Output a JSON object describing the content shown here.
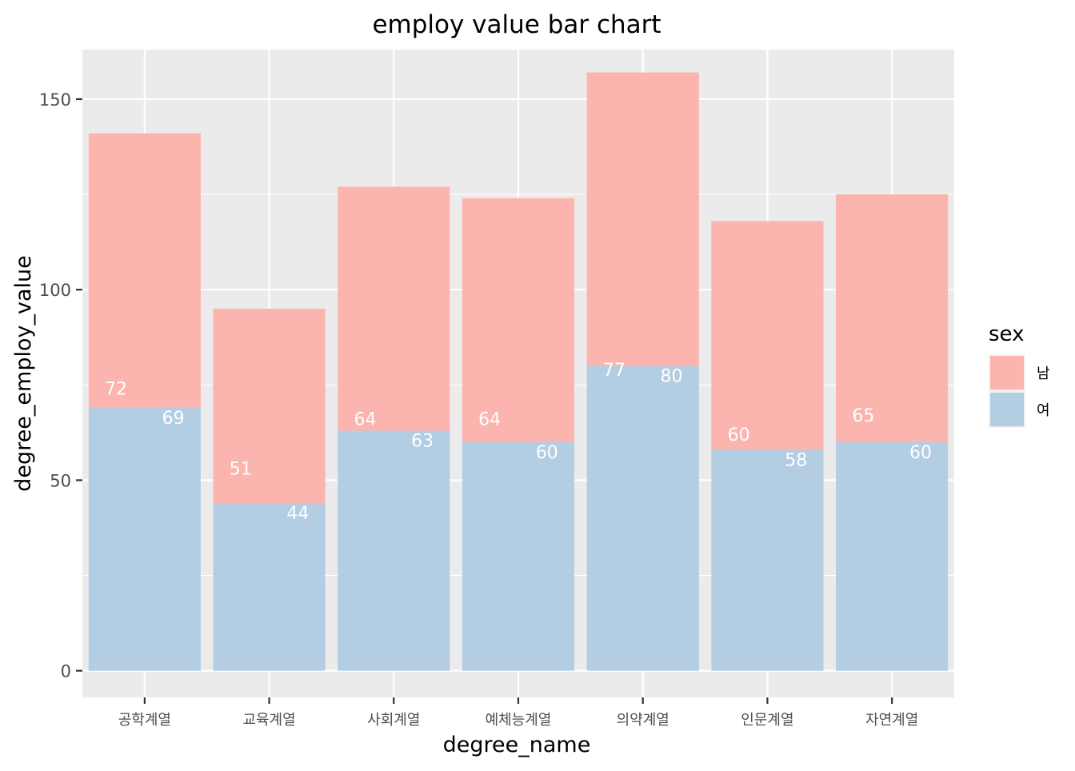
{
  "chart_data": {
    "type": "bar",
    "stacked": true,
    "title": "employ value bar chart",
    "xlabel": "degree_name",
    "ylabel": "degree_employ_value",
    "categories": [
      "공학계열",
      "교육계열",
      "사회계열",
      "예체능계열",
      "의약계열",
      "인문계열",
      "자연계열"
    ],
    "series": [
      {
        "name": "여",
        "values": [
          69,
          44,
          63,
          60,
          80,
          58,
          60
        ],
        "color": "#B3CDE3"
      },
      {
        "name": "남",
        "values": [
          72,
          51,
          64,
          64,
          77,
          60,
          65
        ],
        "color": "#FBB4AE"
      }
    ],
    "data_labels": [
      {
        "left": "72",
        "right": "69"
      },
      {
        "left": "51",
        "right": "44"
      },
      {
        "left": "64",
        "right": "63"
      },
      {
        "left": "64",
        "right": "60"
      },
      {
        "left": "77",
        "right": "80"
      },
      {
        "left": "60",
        "right": "58"
      },
      {
        "left": "65",
        "right": "60"
      }
    ],
    "ylim": [
      -7,
      163
    ],
    "yticks": [
      0,
      50,
      100,
      150
    ],
    "grid": true,
    "legend": {
      "title": "sex",
      "placement": "right",
      "entries": [
        "남",
        "여"
      ]
    },
    "colors": {
      "panel": "#EBEBEB",
      "grid": "#FFFFFF",
      "label_text": "#FFFFFF",
      "axis_text": "#4D4D4D"
    }
  }
}
